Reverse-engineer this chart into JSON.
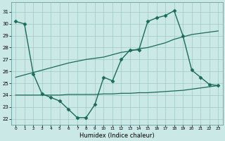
{
  "xlabel": "Humidex (Indice chaleur)",
  "xlim": [
    -0.5,
    23.5
  ],
  "ylim": [
    21.5,
    31.8
  ],
  "yticks": [
    22,
    23,
    24,
    25,
    26,
    27,
    28,
    29,
    30,
    31
  ],
  "xticks": [
    0,
    1,
    2,
    3,
    4,
    5,
    6,
    7,
    8,
    9,
    10,
    11,
    12,
    13,
    14,
    15,
    16,
    17,
    18,
    19,
    20,
    21,
    22,
    23
  ],
  "bg_color": "#c9e8e6",
  "grid_color": "#a0c8c4",
  "line_color": "#1a6b5a",
  "series": [
    {
      "x": [
        0,
        1,
        2,
        3,
        4,
        5,
        6,
        7,
        8,
        9,
        10,
        11,
        12,
        13,
        14,
        15,
        16,
        17,
        18,
        19,
        20,
        21,
        22,
        23
      ],
      "y": [
        30.2,
        30.0,
        25.8,
        24.1,
        23.8,
        23.5,
        22.8,
        22.1,
        22.1,
        23.2,
        25.5,
        25.2,
        27.0,
        27.8,
        27.8,
        30.2,
        30.5,
        30.7,
        31.1,
        29.0,
        26.1,
        25.5,
        24.9,
        24.8
      ],
      "marker": "D",
      "markersize": 2.5,
      "linewidth": 1.0
    },
    {
      "x": [
        0,
        1,
        2,
        3,
        4,
        5,
        6,
        7,
        8,
        9,
        10,
        11,
        12,
        13,
        14,
        15,
        16,
        17,
        18,
        19,
        20,
        21,
        22,
        23
      ],
      "y": [
        25.5,
        25.7,
        25.9,
        26.1,
        26.3,
        26.5,
        26.7,
        26.85,
        27.0,
        27.1,
        27.2,
        27.4,
        27.6,
        27.7,
        27.9,
        28.0,
        28.2,
        28.4,
        28.7,
        28.9,
        29.1,
        29.2,
        29.3,
        29.4
      ],
      "marker": null,
      "markersize": 0,
      "linewidth": 0.9
    },
    {
      "x": [
        0,
        1,
        2,
        3,
        4,
        5,
        6,
        7,
        8,
        9,
        10,
        11,
        12,
        13,
        14,
        15,
        16,
        17,
        18,
        19,
        20,
        21,
        22,
        23
      ],
      "y": [
        24.0,
        24.0,
        24.0,
        24.0,
        24.0,
        24.0,
        24.05,
        24.05,
        24.05,
        24.05,
        24.1,
        24.1,
        24.15,
        24.15,
        24.2,
        24.2,
        24.25,
        24.3,
        24.35,
        24.4,
        24.5,
        24.6,
        24.7,
        24.8
      ],
      "marker": null,
      "markersize": 0,
      "linewidth": 0.9
    }
  ]
}
